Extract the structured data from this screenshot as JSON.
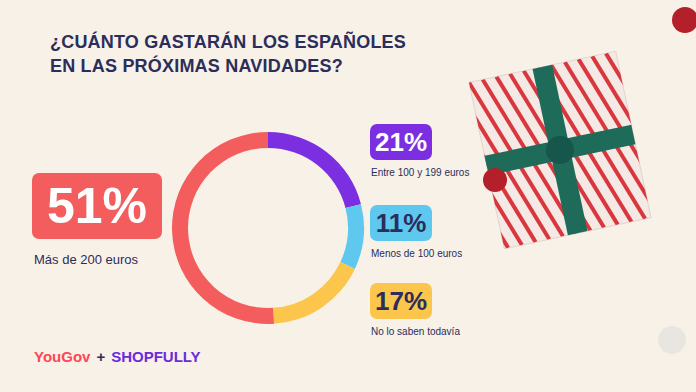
{
  "chart_data": {
    "type": "donut",
    "title": "¿CUÁNTO GASTARÁN LOS ESPAÑOLES\nEN LAS PRÓXIMAS NAVIDADES?",
    "categories": [
      "Entre 100 y 199 euros",
      "Menos de 100 euros",
      "No lo saben todavía",
      "Más de 200 euros"
    ],
    "values": [
      21,
      11,
      17,
      51
    ],
    "value_labels": [
      "21%",
      "11%",
      "17%",
      "51%"
    ],
    "colors": [
      "#7b2fe0",
      "#5ec8ef",
      "#fbc64b",
      "#f45d5d"
    ],
    "data_labels": true,
    "source": "YouGov + SHOPFULLY"
  }
}
